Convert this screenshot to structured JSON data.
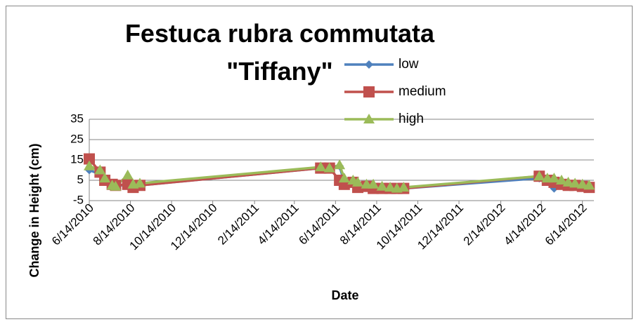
{
  "chart_data": {
    "type": "line",
    "title": "Festuca rubra commutata \"Tiffany\"",
    "x_label": "Date",
    "y_label": "Change in Height (cm)",
    "x": [
      "6/14/2010",
      "6/30/2010",
      "7/7/2010",
      "7/18/2010",
      "7/23/2010",
      "8/10/2010",
      "8/18/2010",
      "8/28/2010",
      "5/23/2011",
      "6/5/2011",
      "6/20/2011",
      "6/27/2011",
      "7/10/2011",
      "7/17/2011",
      "7/30/2011",
      "8/9/2011",
      "8/22/2011",
      "9/3/2011",
      "9/13/2011",
      "9/23/2011",
      "4/11/2012",
      "4/23/2012",
      "5/3/2012",
      "5/14/2012",
      "5/24/2012",
      "6/3/2012",
      "6/14/2012",
      "6/24/2012"
    ],
    "series": [
      {
        "name": "low",
        "color": "#4f81bd",
        "marker": "diamond",
        "values": [
          10,
          8,
          5,
          3,
          2,
          3,
          2,
          2.5,
          11,
          11,
          12,
          4,
          4,
          2,
          2,
          2,
          1.5,
          1,
          1,
          1,
          6,
          5,
          1,
          4,
          3,
          3,
          2,
          1.5
        ]
      },
      {
        "name": "medium",
        "color": "#c0504d",
        "marker": "square",
        "values": [
          15.5,
          9,
          5,
          3,
          2.5,
          3,
          1.5,
          2.5,
          11,
          11,
          5,
          3,
          4,
          1.5,
          2,
          1,
          1,
          1,
          1,
          1,
          7,
          5,
          4,
          3,
          2.5,
          2.5,
          2,
          1.5
        ]
      },
      {
        "name": "high",
        "color": "#9bbb59",
        "marker": "triangle",
        "values": [
          12,
          10,
          6,
          2.5,
          2,
          7.5,
          3,
          3.5,
          11.5,
          11,
          12.5,
          6,
          5,
          4,
          3,
          3,
          2,
          1.5,
          1,
          1.5,
          7,
          6,
          6,
          5,
          4,
          3.5,
          3,
          2.5
        ]
      }
    ],
    "xlim": [
      "6/14/2010",
      "7/1/2012"
    ],
    "xticks": [
      "6/14/2010",
      "8/14/2010",
      "10/14/2010",
      "12/14/2010",
      "2/14/2011",
      "4/14/2011",
      "6/14/2011",
      "8/14/2011",
      "10/14/2011",
      "12/14/2011",
      "2/14/2012",
      "4/14/2012",
      "6/14/2012"
    ],
    "ylim": [
      -5,
      35
    ],
    "yticks": [
      -5,
      5,
      15,
      25,
      35
    ],
    "grid": true
  }
}
